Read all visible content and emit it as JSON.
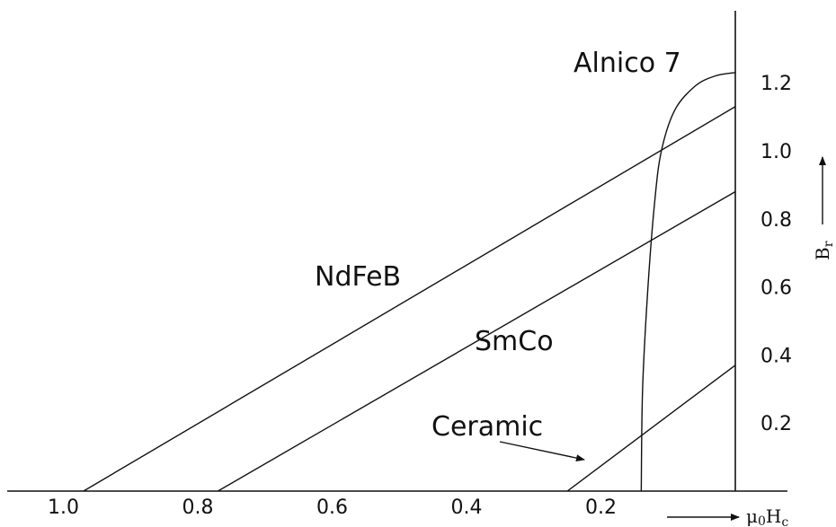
{
  "chart_data": {
    "type": "line",
    "title": "",
    "x_axis": {
      "label_main": "μ",
      "label_sub1": "0",
      "label_main2": "H",
      "label_sub2": "c",
      "range": [
        1.05,
        0
      ],
      "reversed": true,
      "ticks": [
        "1.0",
        "0.8",
        "0.6",
        "0.4",
        "0.2"
      ],
      "tick_values": [
        1.0,
        0.8,
        0.6,
        0.4,
        0.2
      ]
    },
    "y_axis": {
      "label_main": "B",
      "label_sub": "r",
      "range": [
        0,
        1.3
      ],
      "position": "right",
      "ticks": [
        "0.2",
        "0.4",
        "0.6",
        "0.8",
        "1.0",
        "1.2"
      ],
      "tick_values": [
        0.2,
        0.4,
        0.6,
        0.8,
        1.0,
        1.2
      ]
    },
    "grid": false,
    "series": [
      {
        "name": "NdFeB",
        "x": [
          0.97,
          0
        ],
        "y": [
          0,
          1.13
        ]
      },
      {
        "name": "SmCo",
        "x": [
          0.77,
          0
        ],
        "y": [
          0,
          0.88
        ]
      },
      {
        "name": "Ceramic",
        "x": [
          0.25,
          0
        ],
        "y": [
          0,
          0.37
        ]
      },
      {
        "name": "Alnico 7",
        "x": [
          0.14,
          0.138,
          0.13,
          0.12,
          0.11,
          0.09,
          0.06,
          0.03,
          0
        ],
        "y": [
          0,
          0.3,
          0.6,
          0.85,
          1.0,
          1.12,
          1.19,
          1.22,
          1.23
        ]
      }
    ],
    "annotations": [
      {
        "text": "Alnico 7",
        "series": "Alnico 7"
      },
      {
        "text": "NdFeB",
        "series": "NdFeB"
      },
      {
        "text": "SmCo",
        "series": "SmCo"
      },
      {
        "text": "Ceramic",
        "series": "Ceramic",
        "arrow": true
      }
    ]
  }
}
